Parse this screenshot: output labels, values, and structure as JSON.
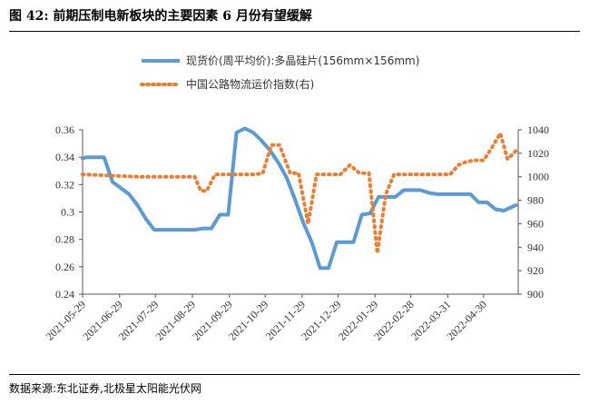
{
  "figure": {
    "title": "图 42:  前期压制电新板块的主要因素 6 月份有望缓解",
    "source": "数据来源:东北证券,北极星太阳能光伏网"
  },
  "chart_data": {
    "type": "line",
    "x_tick_labels": [
      "2021-05-29",
      "2021-06-29",
      "2021-07-29",
      "2021-08-29",
      "2021-09-29",
      "2021-10-29",
      "2021-11-29",
      "2021-12-29",
      "2022-01-29",
      "2022-02-28",
      "2022-03-31",
      "2022-04-30"
    ],
    "y_left": {
      "ylim": [
        0.24,
        0.36
      ],
      "ticks": [
        "0.24",
        "0.26",
        "0.28",
        "0.3",
        "0.32",
        "0.34",
        "0.36"
      ]
    },
    "y_right": {
      "ylim": [
        900,
        1040
      ],
      "ticks": [
        "900",
        "920",
        "940",
        "960",
        "980",
        "1000",
        "1020",
        "1040"
      ]
    },
    "legend": {
      "placement": "top"
    },
    "series": [
      {
        "name": "现货价(周平均价):多晶硅片(156mm×156mm)",
        "axis": "left",
        "style": "solid",
        "color": "#5b9bd5",
        "points": [
          [
            "2021-05-29",
            0.339
          ],
          [
            "2021-06-01",
            0.34
          ],
          [
            "2021-06-16",
            0.34
          ],
          [
            "2021-06-23",
            0.322
          ],
          [
            "2021-07-07",
            0.313
          ],
          [
            "2021-07-14",
            0.305
          ],
          [
            "2021-07-21",
            0.295
          ],
          [
            "2021-07-28",
            0.287
          ],
          [
            "2021-08-04",
            0.287
          ],
          [
            "2021-08-31",
            0.287
          ],
          [
            "2021-09-07",
            0.288
          ],
          [
            "2021-09-14",
            0.288
          ],
          [
            "2021-09-21",
            0.298
          ],
          [
            "2021-09-28",
            0.298
          ],
          [
            "2021-10-05",
            0.358
          ],
          [
            "2021-10-12",
            0.361
          ],
          [
            "2021-10-19",
            0.358
          ],
          [
            "2021-10-26",
            0.352
          ],
          [
            "2021-11-02",
            0.345
          ],
          [
            "2021-11-09",
            0.336
          ],
          [
            "2021-11-16",
            0.325
          ],
          [
            "2021-11-23",
            0.309
          ],
          [
            "2021-11-30",
            0.292
          ],
          [
            "2021-12-07",
            0.278
          ],
          [
            "2021-12-14",
            0.259
          ],
          [
            "2021-12-21",
            0.259
          ],
          [
            "2021-12-28",
            0.278
          ],
          [
            "2022-01-11",
            0.278
          ],
          [
            "2022-01-18",
            0.298
          ],
          [
            "2022-01-25",
            0.299
          ],
          [
            "2022-02-01",
            0.311
          ],
          [
            "2022-02-15",
            0.311
          ],
          [
            "2022-02-22",
            0.316
          ],
          [
            "2022-03-08",
            0.316
          ],
          [
            "2022-03-15",
            0.314
          ],
          [
            "2022-03-22",
            0.313
          ],
          [
            "2022-04-19",
            0.313
          ],
          [
            "2022-04-26",
            0.307
          ],
          [
            "2022-05-03",
            0.307
          ],
          [
            "2022-05-10",
            0.302
          ],
          [
            "2022-05-17",
            0.301
          ],
          [
            "2022-05-27",
            0.305
          ]
        ]
      },
      {
        "name": "中国公路物流运价指数(右)",
        "axis": "right",
        "style": "dotted",
        "color": "#ed7d31",
        "points": [
          [
            "2021-05-29",
            1002
          ],
          [
            "2021-06-21",
            1001
          ],
          [
            "2021-07-15",
            1000
          ],
          [
            "2021-08-20",
            1000
          ],
          [
            "2021-08-31",
            1000
          ],
          [
            "2021-09-05",
            988
          ],
          [
            "2021-09-10",
            988
          ],
          [
            "2021-09-17",
            1002
          ],
          [
            "2021-09-30",
            1002
          ],
          [
            "2021-10-21",
            1002
          ],
          [
            "2021-10-27",
            1003
          ],
          [
            "2021-11-03",
            1027
          ],
          [
            "2021-11-10",
            1027
          ],
          [
            "2021-11-19",
            1003
          ],
          [
            "2021-11-26",
            1003
          ],
          [
            "2021-12-04",
            960
          ],
          [
            "2021-12-11",
            1002
          ],
          [
            "2021-12-20",
            1002
          ],
          [
            "2021-12-31",
            1002
          ],
          [
            "2022-01-08",
            1010
          ],
          [
            "2022-01-16",
            1003
          ],
          [
            "2022-01-24",
            1003
          ],
          [
            "2022-01-31",
            935
          ],
          [
            "2022-02-07",
            985
          ],
          [
            "2022-02-14",
            1002
          ],
          [
            "2022-02-28",
            1002
          ],
          [
            "2022-03-21",
            1002
          ],
          [
            "2022-04-02",
            1002
          ],
          [
            "2022-04-09",
            1010
          ],
          [
            "2022-04-16",
            1013
          ],
          [
            "2022-04-23",
            1014
          ],
          [
            "2022-04-30",
            1014
          ],
          [
            "2022-05-07",
            1025
          ],
          [
            "2022-05-14",
            1037
          ],
          [
            "2022-05-20",
            1015
          ],
          [
            "2022-05-27",
            1022
          ]
        ]
      }
    ]
  }
}
